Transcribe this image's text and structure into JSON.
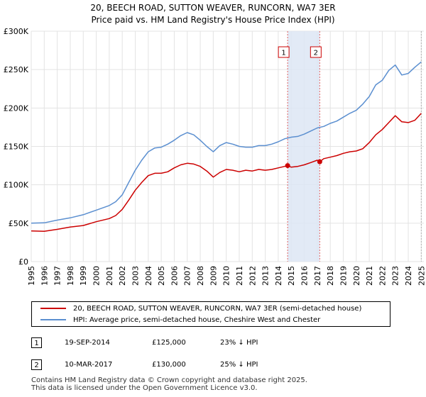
{
  "chart_data": {
    "type": "line",
    "title": "20, BEECH ROAD, SUTTON WEAVER, RUNCORN, WA7 3ER",
    "subtitle": "Price paid vs. HM Land Registry's House Price Index (HPI)",
    "xlim": [
      1995,
      2025.2
    ],
    "ylim": [
      0,
      300000
    ],
    "grid": true,
    "y_ticks": [
      0,
      50000,
      100000,
      150000,
      200000,
      250000,
      300000
    ],
    "y_tick_labels": [
      "£0",
      "£50K",
      "£100K",
      "£150K",
      "£200K",
      "£250K",
      "£300K"
    ],
    "x_ticks": [
      1995,
      1996,
      1997,
      1998,
      1999,
      2000,
      2001,
      2002,
      2003,
      2004,
      2005,
      2006,
      2007,
      2008,
      2009,
      2010,
      2011,
      2012,
      2013,
      2014,
      2015,
      2016,
      2017,
      2018,
      2019,
      2020,
      2021,
      2022,
      2023,
      2024,
      2025
    ],
    "x_tick_labels": [
      "1995",
      "1996",
      "1997",
      "1998",
      "1999",
      "2000",
      "2001",
      "2002",
      "2003",
      "2004",
      "2005",
      "2006",
      "2007",
      "2008",
      "2009",
      "2010",
      "2011",
      "2012",
      "2013",
      "2014",
      "2015",
      "2016",
      "2017",
      "2018",
      "2019",
      "2020",
      "2021",
      "2022",
      "2023",
      "2024",
      "2025"
    ],
    "series": [
      {
        "name": "20, BEECH ROAD, SUTTON WEAVER, RUNCORN, WA7 3ER (semi-detached house)",
        "color": "#cc0000",
        "x": [
          1995,
          1996,
          1997,
          1998,
          1999,
          2000,
          2001,
          2001.5,
          2002,
          2002.5,
          2003,
          2003.5,
          2004,
          2004.5,
          2005,
          2005.5,
          2006,
          2006.5,
          2007,
          2007.5,
          2008,
          2008.5,
          2009,
          2009.5,
          2010,
          2010.5,
          2011,
          2011.5,
          2012,
          2012.5,
          2013,
          2013.5,
          2014,
          2014.5,
          2014.72,
          2015,
          2015.5,
          2016,
          2016.5,
          2017,
          2017.19,
          2017.5,
          2018,
          2018.5,
          2019,
          2019.5,
          2020,
          2020.5,
          2021,
          2021.5,
          2022,
          2022.5,
          2023,
          2023.5,
          2024,
          2024.5,
          2025
        ],
        "values": [
          40000,
          39500,
          42000,
          45000,
          47000,
          52000,
          56000,
          60000,
          68000,
          80000,
          93000,
          103000,
          112000,
          115000,
          115000,
          117000,
          122000,
          126000,
          128000,
          127000,
          124000,
          118000,
          110000,
          116000,
          120000,
          119000,
          117000,
          119000,
          118000,
          120000,
          119000,
          120000,
          122000,
          124000,
          125000,
          123000,
          124000,
          126000,
          129000,
          132000,
          130000,
          134000,
          136000,
          138000,
          141000,
          143000,
          144000,
          147000,
          155000,
          165000,
          172000,
          181000,
          190000,
          182000,
          181000,
          184000,
          193000
        ]
      },
      {
        "name": "HPI: Average price, semi-detached house, Cheshire West and Chester",
        "color": "#5b8fd0",
        "x": [
          1995,
          1996,
          1997,
          1998,
          1999,
          2000,
          2001,
          2001.5,
          2002,
          2002.5,
          2003,
          2003.5,
          2004,
          2004.5,
          2005,
          2005.5,
          2006,
          2006.5,
          2007,
          2007.5,
          2008,
          2008.5,
          2009,
          2009.5,
          2010,
          2010.5,
          2011,
          2011.5,
          2012,
          2012.5,
          2013,
          2013.5,
          2014,
          2014.5,
          2015,
          2015.5,
          2016,
          2016.5,
          2017,
          2017.5,
          2018,
          2018.5,
          2019,
          2019.5,
          2020,
          2020.5,
          2021,
          2021.5,
          2022,
          2022.5,
          2023,
          2023.5,
          2024,
          2024.5,
          2025
        ],
        "values": [
          50000,
          50500,
          54000,
          57000,
          61000,
          67000,
          73000,
          78000,
          87000,
          103000,
          119000,
          132000,
          143000,
          148000,
          149000,
          153000,
          158000,
          164000,
          168000,
          165000,
          158000,
          150000,
          143000,
          151000,
          155000,
          153000,
          150000,
          149000,
          149000,
          151000,
          151000,
          153000,
          156000,
          160000,
          162000,
          163000,
          166000,
          170000,
          174000,
          176000,
          180000,
          183000,
          188000,
          193000,
          197000,
          205000,
          215000,
          230000,
          236000,
          249000,
          256000,
          243000,
          245000,
          253000,
          260000
        ]
      }
    ],
    "shaded_region": [
      2014.72,
      2017.19
    ],
    "annotations": [
      {
        "label": "1",
        "x": 2014.72,
        "y": 125000
      },
      {
        "label": "2",
        "x": 2017.19,
        "y": 130000
      }
    ]
  },
  "legend": {
    "entry1": "20, BEECH ROAD, SUTTON WEAVER, RUNCORN, WA7 3ER (semi-detached house)",
    "entry2": "HPI: Average price, semi-detached house, Cheshire West and Chester"
  },
  "transactions": [
    {
      "num": "1",
      "date": "19-SEP-2014",
      "price": "£125,000",
      "hpi": "23% ↓ HPI"
    },
    {
      "num": "2",
      "date": "10-MAR-2017",
      "price": "£130,000",
      "hpi": "25% ↓ HPI"
    }
  ],
  "footer": {
    "line1": "Contains HM Land Registry data © Crown copyright and database right 2025.",
    "line2": "This data is licensed under the Open Government Licence v3.0."
  },
  "colors": {
    "red": "#cc0000",
    "blue": "#5b8fd0",
    "shade": "#dde6f5",
    "grid": "#e3e3e3"
  }
}
